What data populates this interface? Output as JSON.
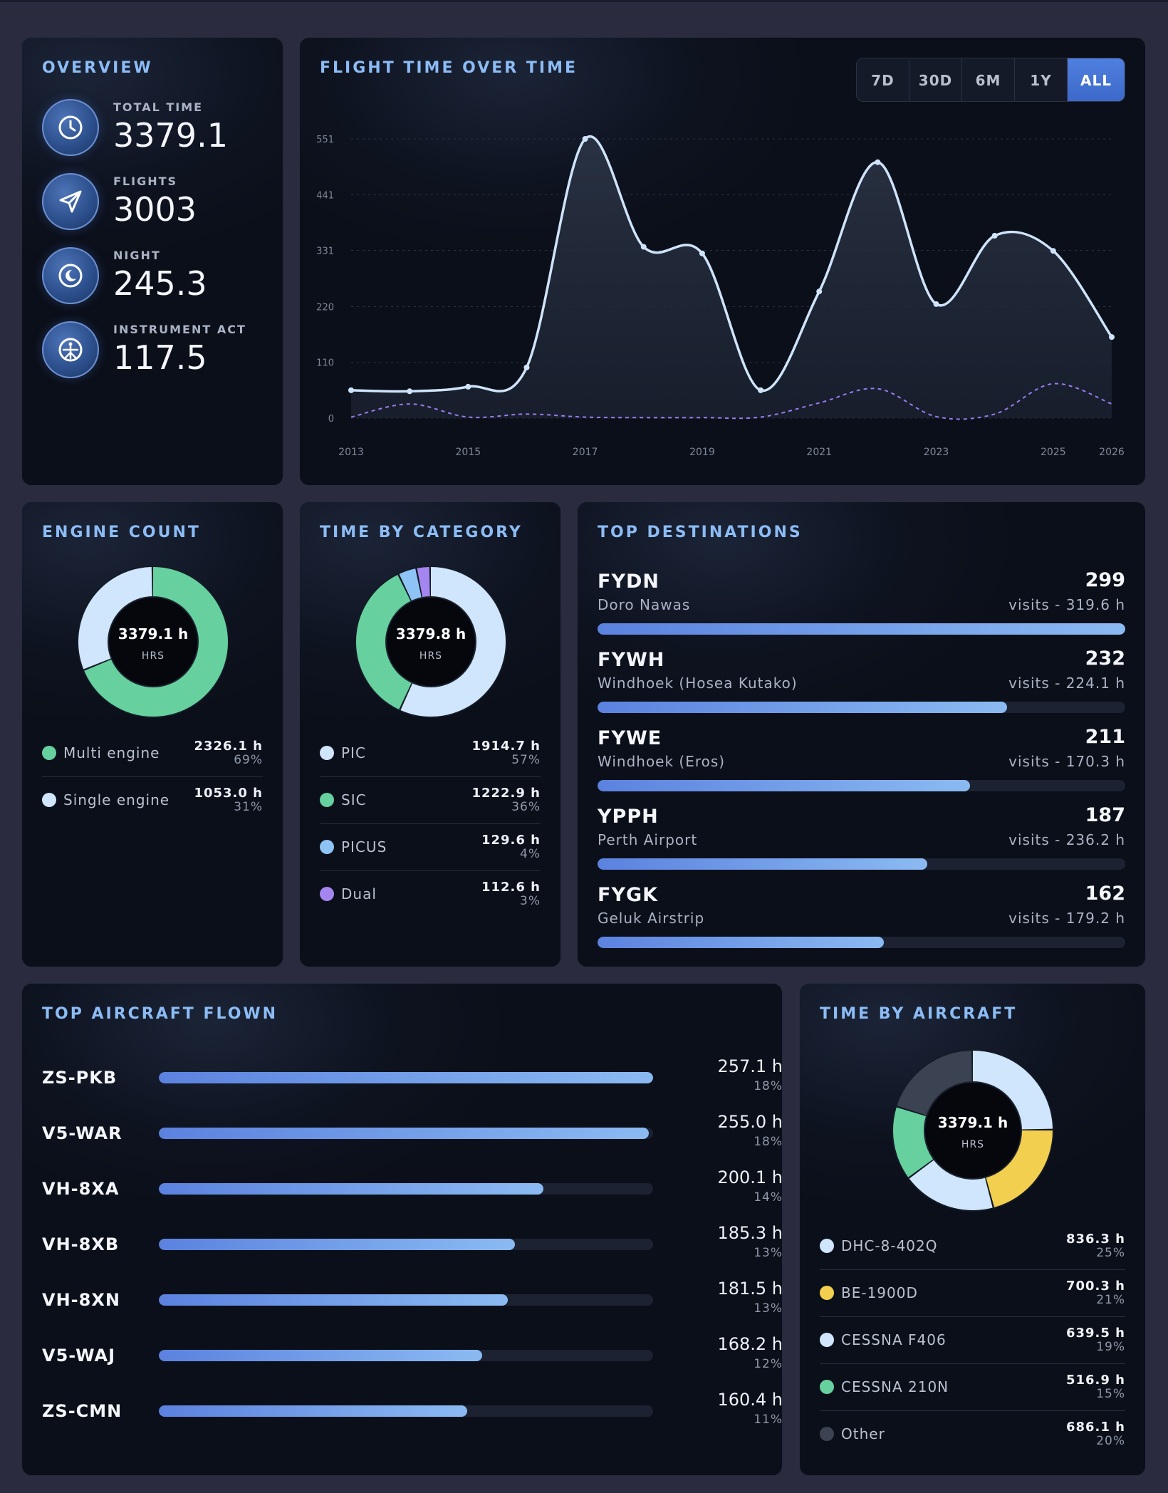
{
  "overview": {
    "title": "OVERVIEW",
    "items": [
      {
        "label": "TOTAL TIME",
        "value": "3379.1",
        "icon": "clock-icon"
      },
      {
        "label": "FLIGHTS",
        "value": "3003",
        "icon": "paper-plane-icon"
      },
      {
        "label": "NIGHT",
        "value": "245.3",
        "icon": "moon-icon"
      },
      {
        "label": "INSTRUMENT ACT",
        "value": "117.5",
        "icon": "instrument-icon"
      }
    ]
  },
  "flight_time": {
    "title": "FLIGHT TIME OVER TIME",
    "ranges": [
      "7D",
      "30D",
      "6M",
      "1Y",
      "ALL"
    ],
    "active_range": "ALL"
  },
  "chart_data": {
    "type": "line",
    "x": [
      2013,
      2014,
      2015,
      2016,
      2017,
      2018,
      2019,
      2020,
      2021,
      2022,
      2023,
      2024,
      2025,
      2026
    ],
    "series": [
      {
        "values": [
          55,
          53,
          62,
          100,
          551,
          338,
          325,
          55,
          250,
          505,
          225,
          360,
          330,
          160
        ],
        "color": "#cfe4fb",
        "style": "solid"
      },
      {
        "values": [
          2,
          28,
          2,
          8,
          2,
          1,
          1,
          2,
          30,
          58,
          3,
          8,
          68,
          28
        ],
        "color": "#9a7cf0",
        "style": "dashed"
      }
    ],
    "yticks": [
      0,
      110,
      220,
      331,
      441,
      551
    ],
    "xticks": [
      "2013",
      "2015",
      "2017",
      "2019",
      "2021",
      "2023",
      "2025",
      "2026"
    ],
    "ylim": [
      0,
      551
    ],
    "grid": true
  },
  "engine_count": {
    "title": "ENGINE COUNT",
    "center_value": "3379.1 h",
    "center_unit": "HRS",
    "items": [
      {
        "name": "Multi engine",
        "value": "2326.1 h",
        "pct": "69%",
        "share": 69,
        "color": "#66d19e"
      },
      {
        "name": "Single engine",
        "value": "1053.0 h",
        "pct": "31%",
        "share": 31,
        "color": "#cfe6fd"
      }
    ]
  },
  "time_by_category": {
    "title": "TIME BY CATEGORY",
    "center_value": "3379.8 h",
    "center_unit": "HRS",
    "items": [
      {
        "name": "PIC",
        "value": "1914.7 h",
        "pct": "57%",
        "share": 57,
        "color": "#cfe6fd"
      },
      {
        "name": "SIC",
        "value": "1222.9 h",
        "pct": "36%",
        "share": 36,
        "color": "#66d19e"
      },
      {
        "name": "PICUS",
        "value": "129.6 h",
        "pct": "4%",
        "share": 4,
        "color": "#8ec3f5"
      },
      {
        "name": "Dual",
        "value": "112.6 h",
        "pct": "3%",
        "share": 3,
        "color": "#a585f0"
      }
    ]
  },
  "top_destinations": {
    "title": "TOP DESTINATIONS",
    "items": [
      {
        "code": "FYDN",
        "name": "Doro Nawas",
        "count": "299",
        "detail": "visits - 319.6 h",
        "fill": 1.0
      },
      {
        "code": "FYWH",
        "name": "Windhoek (Hosea Kutako)",
        "count": "232",
        "detail": "visits - 224.1 h",
        "fill": 0.776
      },
      {
        "code": "FYWE",
        "name": "Windhoek (Eros)",
        "count": "211",
        "detail": "visits - 170.3 h",
        "fill": 0.706
      },
      {
        "code": "YPPH",
        "name": "Perth Airport",
        "count": "187",
        "detail": "visits - 236.2 h",
        "fill": 0.625
      },
      {
        "code": "FYGK",
        "name": "Geluk Airstrip",
        "count": "162",
        "detail": "visits - 179.2 h",
        "fill": 0.542
      }
    ]
  },
  "top_aircraft": {
    "title": "TOP AIRCRAFT FLOWN",
    "items": [
      {
        "reg": "ZS-PKB",
        "hours": "257.1 h",
        "pct": "18%",
        "fill": 1.0
      },
      {
        "reg": "V5-WAR",
        "hours": "255.0 h",
        "pct": "18%",
        "fill": 0.992
      },
      {
        "reg": "VH-8XA",
        "hours": "200.1 h",
        "pct": "14%",
        "fill": 0.778
      },
      {
        "reg": "VH-8XB",
        "hours": "185.3 h",
        "pct": "13%",
        "fill": 0.721
      },
      {
        "reg": "VH-8XN",
        "hours": "181.5 h",
        "pct": "13%",
        "fill": 0.706
      },
      {
        "reg": "V5-WAJ",
        "hours": "168.2 h",
        "pct": "12%",
        "fill": 0.654
      },
      {
        "reg": "ZS-CMN",
        "hours": "160.4 h",
        "pct": "11%",
        "fill": 0.624
      }
    ]
  },
  "time_by_aircraft": {
    "title": "TIME BY AIRCRAFT",
    "center_value": "3379.1 h",
    "center_unit": "HRS",
    "items": [
      {
        "name": "DHC-8-402Q",
        "value": "836.3 h",
        "pct": "25%",
        "share": 25,
        "color": "#cfe6fd"
      },
      {
        "name": "BE-1900D",
        "value": "700.3 h",
        "pct": "21%",
        "share": 21,
        "color": "#f2cf4e"
      },
      {
        "name": "CESSNA F406",
        "value": "639.5 h",
        "pct": "19%",
        "share": 19,
        "color": "#cfe6fd"
      },
      {
        "name": "CESSNA 210N",
        "value": "516.9 h",
        "pct": "15%",
        "share": 15,
        "color": "#66d19e"
      },
      {
        "name": "Other",
        "value": "686.1 h",
        "pct": "20%",
        "share": 20,
        "color": "#3b4252"
      }
    ]
  }
}
